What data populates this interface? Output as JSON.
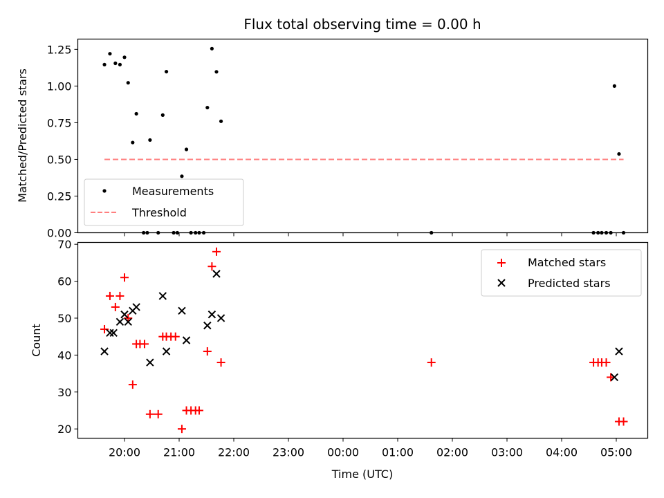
{
  "chart_data": [
    {
      "type": "scatter",
      "title": "Flux total observing time = 0.00 h",
      "xlabel": "",
      "ylabel": "Matched/Predicted stars",
      "ylim": [
        0,
        1.32
      ],
      "yticks": [
        "0.00",
        "0.25",
        "0.50",
        "0.75",
        "1.00",
        "1.25"
      ],
      "legend_position": "lower-left",
      "series": [
        {
          "name": "Measurements",
          "marker": "dot",
          "color": "#000000",
          "points": [
            [
              "19:38",
              1.146
            ],
            [
              "19:44",
              1.22
            ],
            [
              "19:50",
              1.155
            ],
            [
              "19:55",
              1.146
            ],
            [
              "20:00",
              1.196
            ],
            [
              "20:04",
              1.022
            ],
            [
              "20:09",
              0.615
            ],
            [
              "20:13",
              0.811
            ],
            [
              "20:21",
              0.0
            ],
            [
              "20:25",
              0.0
            ],
            [
              "20:28",
              0.632
            ],
            [
              "20:37",
              0.0
            ],
            [
              "20:42",
              0.802
            ],
            [
              "20:46",
              1.098
            ],
            [
              "20:54",
              0.0
            ],
            [
              "20:58",
              0.0
            ],
            [
              "21:03",
              0.385
            ],
            [
              "21:08",
              0.568
            ],
            [
              "21:13",
              0.0
            ],
            [
              "21:18",
              0.0
            ],
            [
              "21:22",
              0.0
            ],
            [
              "21:27",
              0.0
            ],
            [
              "21:31",
              0.853
            ],
            [
              "21:36",
              1.255
            ],
            [
              "21:41",
              1.097
            ],
            [
              "21:46",
              0.76
            ],
            [
              "01:37",
              0.0
            ],
            [
              "04:35",
              0.0
            ],
            [
              "04:40",
              0.0
            ],
            [
              "04:44",
              0.0
            ],
            [
              "04:49",
              0.0
            ],
            [
              "04:54",
              0.0
            ],
            [
              "04:58",
              1.0
            ],
            [
              "05:03",
              0.537
            ],
            [
              "05:08",
              0.0
            ]
          ]
        },
        {
          "name": "Threshold",
          "marker": "dashed-line",
          "color": "#ff7f7f",
          "points": [
            [
              "19:38",
              0.5
            ],
            [
              "05:08",
              0.5
            ]
          ]
        }
      ]
    },
    {
      "type": "scatter",
      "title": "",
      "xlabel": "Time (UTC)",
      "ylabel": "Count",
      "ylim": [
        17.5,
        70.5
      ],
      "yticks": [
        "20",
        "30",
        "40",
        "50",
        "60",
        "70"
      ],
      "legend_position": "upper-right",
      "series": [
        {
          "name": "Matched stars",
          "marker": "plus",
          "color": "#ff0000",
          "points": [
            [
              "19:38",
              47
            ],
            [
              "19:44",
              56
            ],
            [
              "19:50",
              53
            ],
            [
              "19:55",
              56
            ],
            [
              "20:00",
              61
            ],
            [
              "20:04",
              50
            ],
            [
              "20:09",
              32
            ],
            [
              "20:13",
              43
            ],
            [
              "20:17",
              43
            ],
            [
              "20:22",
              43
            ],
            [
              "20:28",
              24
            ],
            [
              "20:37",
              24
            ],
            [
              "20:42",
              45
            ],
            [
              "20:46",
              45
            ],
            [
              "20:51",
              45
            ],
            [
              "20:56",
              45
            ],
            [
              "21:03",
              20
            ],
            [
              "21:08",
              25
            ],
            [
              "21:13",
              25
            ],
            [
              "21:18",
              25
            ],
            [
              "21:22",
              25
            ],
            [
              "21:31",
              41
            ],
            [
              "21:36",
              64
            ],
            [
              "21:41",
              68
            ],
            [
              "21:46",
              38
            ],
            [
              "01:37",
              38
            ],
            [
              "04:35",
              38
            ],
            [
              "04:40",
              38
            ],
            [
              "04:44",
              38
            ],
            [
              "04:49",
              38
            ],
            [
              "04:54",
              34
            ],
            [
              "05:03",
              22
            ],
            [
              "05:08",
              22
            ]
          ]
        },
        {
          "name": "Predicted stars",
          "marker": "x",
          "color": "#000000",
          "points": [
            [
              "19:38",
              41
            ],
            [
              "19:44",
              46
            ],
            [
              "19:48",
              46
            ],
            [
              "19:55",
              49
            ],
            [
              "20:00",
              51
            ],
            [
              "20:04",
              49
            ],
            [
              "20:09",
              52
            ],
            [
              "20:13",
              53
            ],
            [
              "20:28",
              38
            ],
            [
              "20:42",
              56
            ],
            [
              "20:46",
              41
            ],
            [
              "21:03",
              52
            ],
            [
              "21:08",
              44
            ],
            [
              "21:31",
              48
            ],
            [
              "21:36",
              51
            ],
            [
              "21:41",
              62
            ],
            [
              "21:46",
              50
            ],
            [
              "04:58",
              34
            ],
            [
              "05:03",
              41
            ]
          ]
        }
      ]
    }
  ],
  "x_axis": {
    "ticks": [
      "20:00",
      "21:00",
      "22:00",
      "23:00",
      "00:00",
      "01:00",
      "02:00",
      "03:00",
      "04:00",
      "05:00"
    ]
  }
}
